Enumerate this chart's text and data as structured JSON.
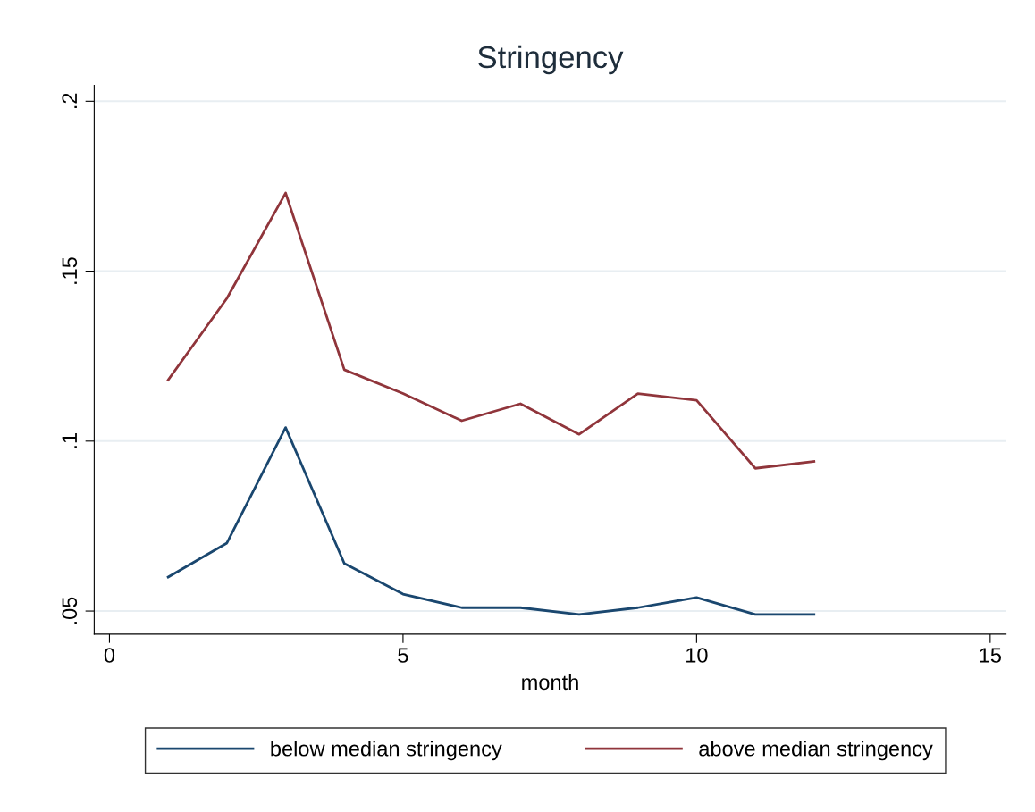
{
  "chart_data": {
    "type": "line",
    "title": "Stringency",
    "xlabel": "month",
    "x": [
      1,
      2,
      3,
      4,
      5,
      6,
      7,
      8,
      9,
      10,
      11,
      12
    ],
    "series": [
      {
        "name": "below median stringency",
        "color": "#1a476f",
        "values": [
          0.06,
          0.07,
          0.104,
          0.064,
          0.055,
          0.051,
          0.051,
          0.049,
          0.051,
          0.054,
          0.049,
          0.049
        ]
      },
      {
        "name": "above median stringency",
        "color": "#90353b",
        "values": [
          0.118,
          0.142,
          0.173,
          0.121,
          0.114,
          0.106,
          0.111,
          0.102,
          0.114,
          0.112,
          0.092,
          0.094
        ]
      }
    ],
    "xlim": [
      -0.26,
      15.27
    ],
    "xticks": [
      0,
      5,
      10,
      15
    ],
    "ylim": [
      0.0432,
      0.2047
    ],
    "yticks": [
      {
        "value": 0.05,
        "label": ".05"
      },
      {
        "value": 0.1,
        "label": ".1"
      },
      {
        "value": 0.15,
        "label": ".15"
      },
      {
        "value": 0.2,
        "label": ".2"
      }
    ],
    "grid": "y",
    "legend": "bottom",
    "marker": "none",
    "line_style": "solid"
  }
}
